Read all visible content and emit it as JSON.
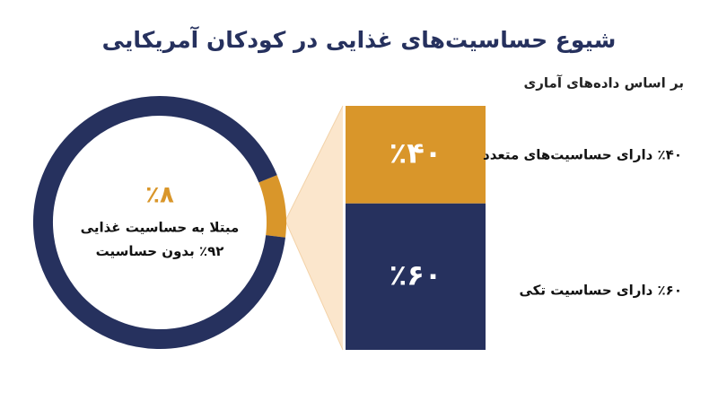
{
  "chart_data": [
    {
      "type": "donut",
      "title": "شیوع حساسیت‌های غذایی در کودکان آمریکایی",
      "categories": [
        "مبتلا به حساسیت غذایی",
        "بدون حساسیت"
      ],
      "values": [
        8,
        92
      ],
      "value_labels": [
        "٪۸",
        "٪۹۲"
      ],
      "colors": [
        "#d9962a",
        "#26315e"
      ]
    },
    {
      "type": "stacked-column",
      "subtitle": "بر اساس داده‌های آماری",
      "categories": [
        "دارای حساسیت‌های متعدد",
        "دارای حساسیت تکی"
      ],
      "values": [
        40,
        60
      ],
      "value_labels": [
        "٪۴۰",
        "٪۶۰"
      ],
      "colors": [
        "#d9962a",
        "#26315e"
      ]
    }
  ]
}
